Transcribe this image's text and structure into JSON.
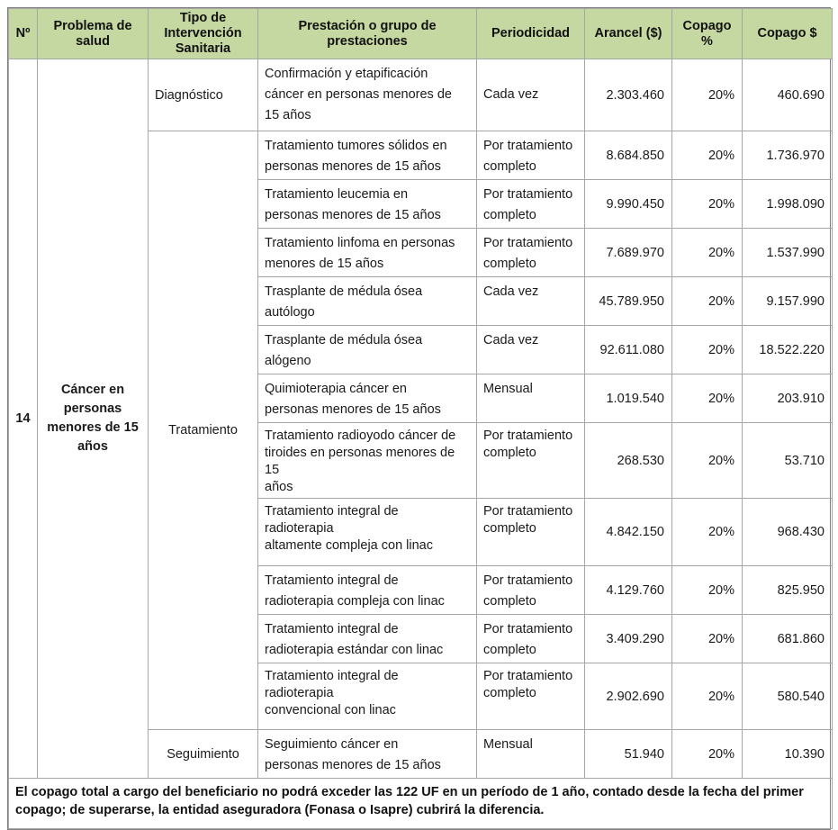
{
  "colors": {
    "header_bg": "#c6d8a1",
    "border_inner": "#a6a6a6",
    "border_outer": "#7f7f7f",
    "text": "#1a1a1a"
  },
  "table": {
    "columns": [
      "Nº",
      "Problema de salud",
      "Tipo de Intervención Sanitaria",
      "Prestación o grupo de prestaciones",
      "Periodicidad",
      "Arancel ($)",
      "Copago %",
      "Copago $"
    ],
    "numero": "14",
    "problema": "Cáncer en\npersonas menores de 15 años",
    "tipos": {
      "diagnostico": "Diagnóstico",
      "tratamiento": "Tratamiento",
      "seguimiento": "Seguimiento"
    },
    "rows": [
      {
        "prestacion": "Confirmación y etapificación\ncáncer en personas menores de\n15 años",
        "periodicidad": "Cada vez",
        "arancel": "2.303.460",
        "copago_pct": "20%",
        "copago": "460.690"
      },
      {
        "prestacion": "Tratamiento tumores sólidos en\npersonas menores de 15 años",
        "periodicidad": "Por tratamiento\ncompleto",
        "arancel": "8.684.850",
        "copago_pct": "20%",
        "copago": "1.736.970"
      },
      {
        "prestacion": "Tratamiento leucemia en\npersonas menores de 15 años",
        "periodicidad": "Por tratamiento\ncompleto",
        "arancel": "9.990.450",
        "copago_pct": "20%",
        "copago": "1.998.090"
      },
      {
        "prestacion": "Tratamiento linfoma en personas\nmenores de 15 años",
        "periodicidad": "Por tratamiento\ncompleto",
        "arancel": "7.689.970",
        "copago_pct": "20%",
        "copago": "1.537.990"
      },
      {
        "prestacion": "Trasplante de médula ósea\nautólogo",
        "periodicidad": "Cada vez",
        "arancel": "45.789.950",
        "copago_pct": "20%",
        "copago": "9.157.990"
      },
      {
        "prestacion": "Trasplante de médula ósea\nalógeno",
        "periodicidad": "Cada vez",
        "arancel": "92.611.080",
        "copago_pct": "20%",
        "copago": "18.522.220"
      },
      {
        "prestacion": "Quimioterapia cáncer en\npersonas menores de 15 años",
        "periodicidad": "Mensual",
        "arancel": "1.019.540",
        "copago_pct": "20%",
        "copago": "203.910"
      },
      {
        "prestacion": "Tratamiento radioyodo cáncer  de\ntiroides en personas menores de 15\naños",
        "periodicidad": "Por tratamiento\ncompleto",
        "arancel": "268.530",
        "copago_pct": "20%",
        "copago": "53.710"
      },
      {
        "prestacion": "Tratamiento integral de radioterapia\naltamente compleja con linac",
        "periodicidad": "Por tratamiento\ncompleto",
        "arancel": "4.842.150",
        "copago_pct": "20%",
        "copago": "968.430"
      },
      {
        "prestacion": "Tratamiento integral de\nradioterapia compleja con linac",
        "periodicidad": "Por tratamiento\ncompleto",
        "arancel": "4.129.760",
        "copago_pct": "20%",
        "copago": "825.950"
      },
      {
        "prestacion": "Tratamiento integral de\nradioterapia estándar con linac",
        "periodicidad": "Por tratamiento\ncompleto",
        "arancel": "3.409.290",
        "copago_pct": "20%",
        "copago": "681.860"
      },
      {
        "prestacion": "Tratamiento integral de radioterapia\nconvencional con linac",
        "periodicidad": "Por tratamiento\ncompleto",
        "arancel": "2.902.690",
        "copago_pct": "20%",
        "copago": "580.540"
      },
      {
        "prestacion": "Seguimiento cáncer en\npersonas menores de 15 años",
        "periodicidad": "Mensual",
        "arancel": "51.940",
        "copago_pct": "20%",
        "copago": "10.390"
      }
    ],
    "footer_note": "El copago total a cargo del beneficiario no podrá exceder las 122 UF en un período de 1 año, contado desde la fecha del primer copago; de superarse, la entidad aseguradora (Fonasa o Isapre) cubrirá la diferencia."
  }
}
